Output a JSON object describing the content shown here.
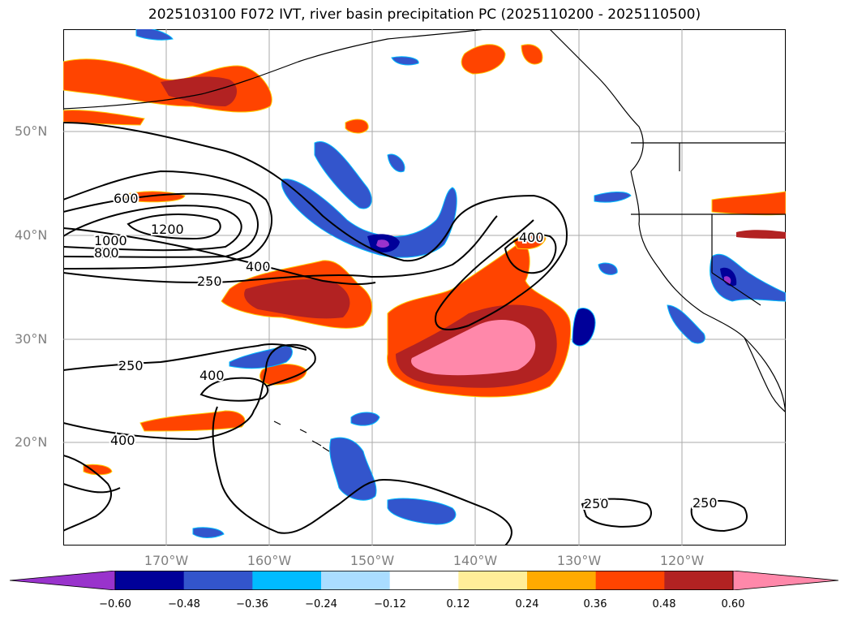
{
  "title": "2025103100 F072 IVT, river basin precipitation PC (2025110200 - 2025110500)",
  "lat_labels": [
    "50°N",
    "40°N",
    "30°N",
    "20°N"
  ],
  "lon_labels": [
    "170°W",
    "160°W",
    "150°W",
    "140°W",
    "130°W",
    "120°W"
  ],
  "contour_labels": [
    "600",
    "1200",
    "1000",
    "800",
    "400",
    "250",
    "400",
    "250",
    "400",
    "400",
    "250",
    "250"
  ],
  "colorbar": {
    "ticks": [
      "−0.60",
      "−0.48",
      "−0.36",
      "−0.24",
      "−0.12",
      "0.12",
      "0.24",
      "0.36",
      "0.48",
      "0.60"
    ],
    "colors": [
      "#9933cc",
      "#000099",
      "#3355cc",
      "#00bbff",
      "#aaddff",
      "#ffffff",
      "#ffee99",
      "#ffaa00",
      "#ff4400",
      "#b22222",
      "#ff88aa"
    ]
  }
}
